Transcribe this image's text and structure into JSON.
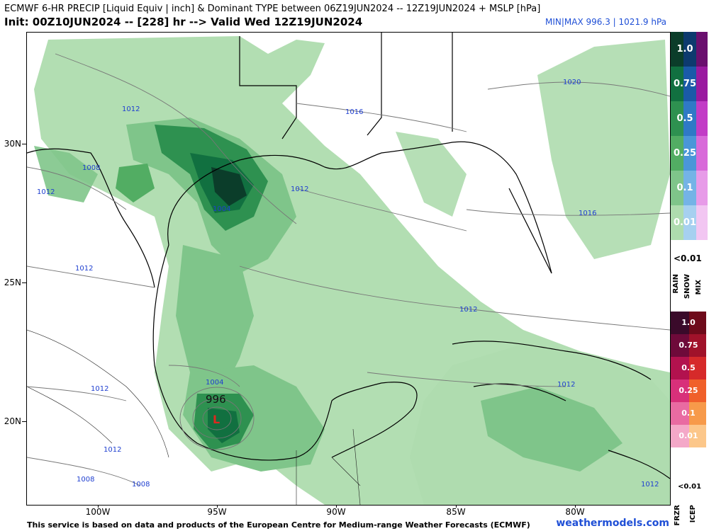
{
  "header": {
    "line1": "ECMWF 6-HR PRECIP [Liquid Equiv | inch] & Dominant TYPE between 06Z19JUN2024 -- 12Z19JUN2024 + MSLP [hPa]",
    "line2": "Init: 00Z10JUN2024 -- [228] hr --> Valid Wed 12Z19JUN2024",
    "minmax": "MIN|MAX 996.3 | 1021.9 hPa"
  },
  "axes": {
    "lat_labels": [
      "30N",
      "25N",
      "20N"
    ],
    "lon_labels": [
      "100W",
      "95W",
      "90W",
      "85W",
      "80W"
    ]
  },
  "isobars": {
    "labels": [
      "1012",
      "1016",
      "1020",
      "1008",
      "1012",
      "1012",
      "1004",
      "1016",
      "1012",
      "1012",
      "1004",
      "1012",
      "1012",
      "1012",
      "1008",
      "1008",
      "1012"
    ],
    "low_pressure": "996",
    "low_symbol": "L"
  },
  "legend": {
    "rain_levels": [
      "1.0",
      "0.75",
      "0.5",
      "0.25",
      "0.1",
      "0.01"
    ],
    "rain_snow_mix_trace": "<0.01",
    "type_labels_top": [
      "RAIN",
      "SNOW",
      "MIX"
    ],
    "frzr_levels": [
      "1.0",
      "0.75",
      "0.5",
      "0.25",
      "0.1",
      "0.01"
    ],
    "frzr_icep_trace": "<0.01",
    "type_labels_bottom": [
      "FRZR",
      "ICEP"
    ],
    "colors": {
      "rain": [
        "#0b3d2a",
        "#117040",
        "#2e9150",
        "#52ad63",
        "#7fc58a",
        "#aedcae"
      ],
      "snow": [
        "#0d3a6e",
        "#1a5aa8",
        "#2f79c6",
        "#4a96d8",
        "#74b3e6",
        "#a6d0f0"
      ],
      "mix": [
        "#6a0f6e",
        "#9a1aa0",
        "#c23cc6",
        "#d86ad9",
        "#e79be8",
        "#f2c6f2"
      ],
      "frzr": [
        "#3a0a2a",
        "#6e0a3a",
        "#b2124e",
        "#d8307a",
        "#e96ba2",
        "#f4a8c8"
      ],
      "icep": [
        "#6e0a1a",
        "#a0122a",
        "#d62a2a",
        "#f0602a",
        "#f79a4a",
        "#fcc78a"
      ]
    }
  },
  "footer": {
    "credit": "This service is based on data and products of the European Centre for Medium-range Weather Forecasts (ECMWF)",
    "brand": "weathermodels.com"
  }
}
